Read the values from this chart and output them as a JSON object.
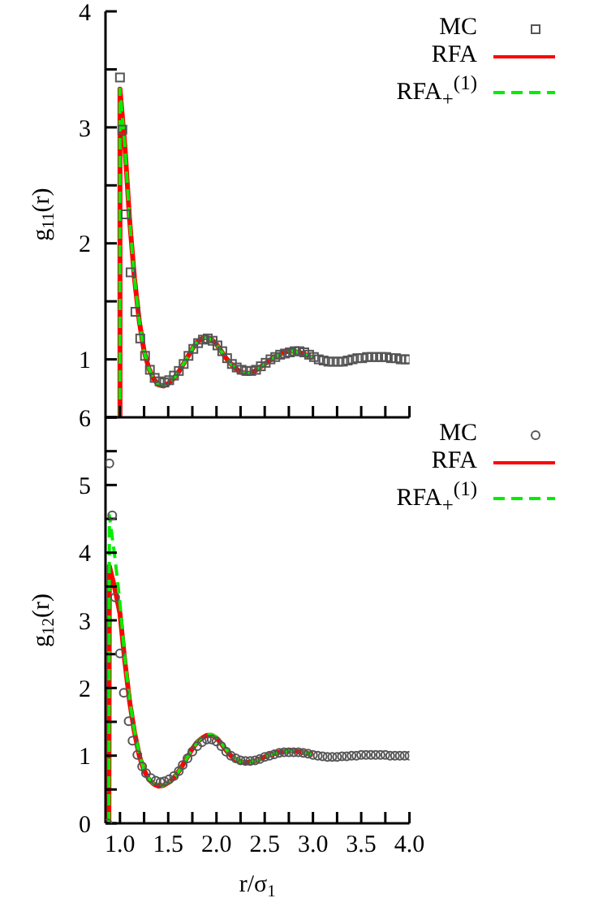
{
  "chart_data": [
    {
      "type": "line",
      "ylabel": "g$_{11}$(r)",
      "xlim": [
        0.85,
        4
      ],
      "ylim": [
        0.5,
        4
      ],
      "xticks": [
        {
          "value": 1,
          "label": null
        },
        {
          "value": 1.25,
          "label": null
        },
        {
          "value": 1.5,
          "label": null
        },
        {
          "value": 1.75,
          "label": null
        },
        {
          "value": 2,
          "label": null
        },
        {
          "value": 2.25,
          "label": null
        },
        {
          "value": 2.5,
          "label": null
        },
        {
          "value": 2.75,
          "label": null
        },
        {
          "value": 3,
          "label": null
        },
        {
          "value": 3.25,
          "label": null
        },
        {
          "value": 3.5,
          "label": null
        },
        {
          "value": 3.75,
          "label": null
        },
        {
          "value": 4,
          "label": null
        }
      ],
      "yticks": [
        {
          "value": 0.5,
          "label": null
        },
        1,
        {
          "value": 1.5,
          "label": null
        },
        2,
        {
          "value": 2.5,
          "label": null
        },
        3,
        {
          "value": 3.5,
          "label": null
        },
        4
      ],
      "tick_labels": "y",
      "legend": "top right",
      "grid": false,
      "series": [
        {
          "name": "MC",
          "type": "scatter",
          "marker": "square",
          "color": "#555555",
          "x": [
            1.0,
            1.025,
            1.06,
            1.11,
            1.16,
            1.21,
            1.26,
            1.31,
            1.36,
            1.41,
            1.46,
            1.51,
            1.56,
            1.61,
            1.66,
            1.71,
            1.76,
            1.81,
            1.86,
            1.91,
            1.96,
            2.01,
            2.06,
            2.11,
            2.16,
            2.21,
            2.26,
            2.31,
            2.36,
            2.41,
            2.46,
            2.51,
            2.56,
            2.61,
            2.66,
            2.71,
            2.76,
            2.81,
            2.86,
            2.91,
            2.96,
            3.01,
            3.06,
            3.11,
            3.16,
            3.21,
            3.26,
            3.31,
            3.36,
            3.41,
            3.46,
            3.51,
            3.56,
            3.61,
            3.66,
            3.71,
            3.76,
            3.81,
            3.86,
            3.91,
            3.96,
            4.0
          ],
          "values": [
            3.43,
            2.98,
            2.25,
            1.75,
            1.41,
            1.18,
            1.03,
            0.91,
            0.84,
            0.81,
            0.8,
            0.82,
            0.86,
            0.9,
            0.96,
            1.03,
            1.09,
            1.14,
            1.17,
            1.18,
            1.16,
            1.12,
            1.07,
            1.01,
            0.96,
            0.93,
            0.91,
            0.9,
            0.9,
            0.91,
            0.94,
            0.97,
            1.0,
            1.02,
            1.04,
            1.05,
            1.06,
            1.07,
            1.07,
            1.06,
            1.04,
            1.02,
            1.0,
            0.99,
            0.98,
            0.98,
            0.98,
            0.98,
            0.99,
            1.0,
            1.01,
            1.01,
            1.02,
            1.02,
            1.02,
            1.02,
            1.02,
            1.01,
            1.01,
            1.0,
            1.0,
            1.0
          ]
        },
        {
          "name": "RFA",
          "type": "line",
          "marker": "none",
          "line_style": "solid",
          "color": "#ff0000",
          "x": [
            1.0,
            1.0,
            1.05,
            1.1,
            1.15,
            1.2,
            1.25,
            1.3,
            1.35,
            1.4,
            1.45,
            1.5,
            1.55,
            1.6,
            1.65,
            1.7,
            1.75,
            1.8,
            1.85,
            1.9,
            1.95,
            2.0,
            2.05,
            2.1,
            2.15,
            2.2,
            2.25,
            2.3,
            2.35,
            2.4,
            2.45,
            2.5,
            2.55,
            2.6,
            2.65,
            2.7,
            2.75,
            2.8,
            2.85,
            2.9,
            2.95,
            3.0
          ],
          "values": [
            0.5,
            3.33,
            2.85,
            2.2,
            1.7,
            1.33,
            1.07,
            0.92,
            0.83,
            0.78,
            0.77,
            0.79,
            0.83,
            0.88,
            0.95,
            1.02,
            1.09,
            1.15,
            1.18,
            1.19,
            1.17,
            1.13,
            1.07,
            1.01,
            0.96,
            0.92,
            0.89,
            0.88,
            0.88,
            0.9,
            0.93,
            0.96,
            0.99,
            1.02,
            1.04,
            1.06,
            1.07,
            1.07,
            1.06,
            1.05,
            1.03,
            1.01
          ]
        },
        {
          "name": "RFA$_{+}$$^{(1)}$",
          "type": "line",
          "marker": "none",
          "line_style": "dashed",
          "color": "#00ee00",
          "x": [
            1.0,
            1.0,
            1.05,
            1.1,
            1.15,
            1.2,
            1.25,
            1.3,
            1.35,
            1.4,
            1.45,
            1.5,
            1.55,
            1.6,
            1.65,
            1.7,
            1.75,
            1.8,
            1.85,
            1.9,
            1.95,
            2.0,
            2.05,
            2.1,
            2.15,
            2.2,
            2.25,
            2.3,
            2.35,
            2.4,
            2.45,
            2.5,
            2.55,
            2.6,
            2.65,
            2.7,
            2.75,
            2.8,
            2.85,
            2.9,
            2.95,
            3.0
          ],
          "values": [
            0.5,
            3.33,
            2.85,
            2.2,
            1.7,
            1.33,
            1.07,
            0.92,
            0.83,
            0.78,
            0.77,
            0.79,
            0.83,
            0.88,
            0.95,
            1.02,
            1.09,
            1.15,
            1.18,
            1.19,
            1.17,
            1.13,
            1.07,
            1.01,
            0.96,
            0.92,
            0.89,
            0.88,
            0.88,
            0.9,
            0.93,
            0.96,
            0.99,
            1.02,
            1.04,
            1.06,
            1.07,
            1.07,
            1.06,
            1.05,
            1.03,
            1.01
          ]
        }
      ]
    },
    {
      "type": "line",
      "xlabel": "r/σ$_{1}$",
      "ylabel": "g$_{12}$(r)",
      "xlim": [
        0.85,
        4
      ],
      "ylim": [
        0,
        6
      ],
      "xticks": [
        {
          "value": 1,
          "label": "1.0"
        },
        {
          "value": 1.25,
          "label": null
        },
        {
          "value": 1.5,
          "label": "1.5"
        },
        {
          "value": 1.75,
          "label": null
        },
        {
          "value": 2,
          "label": "2.0"
        },
        {
          "value": 2.25,
          "label": null
        },
        {
          "value": 2.5,
          "label": "2.5"
        },
        {
          "value": 2.75,
          "label": null
        },
        {
          "value": 3,
          "label": "3.0"
        },
        {
          "value": 3.25,
          "label": null
        },
        {
          "value": 3.5,
          "label": "3.5"
        },
        {
          "value": 3.75,
          "label": null
        },
        {
          "value": 4,
          "label": "4.0"
        }
      ],
      "yticks": [
        0,
        {
          "value": 0.5,
          "label": null
        },
        1,
        {
          "value": 1.5,
          "label": null
        },
        2,
        {
          "value": 2.5,
          "label": null
        },
        3,
        {
          "value": 3.5,
          "label": null
        },
        4,
        {
          "value": 4.5,
          "label": null
        },
        5,
        {
          "value": 5.5,
          "label": null
        },
        6
      ],
      "legend": "top right",
      "grid": false,
      "series": [
        {
          "name": "MC",
          "type": "scatter",
          "marker": "circle",
          "color": "#555555",
          "x": [
            0.87,
            0.89,
            0.92,
            0.95,
            1.0,
            1.04,
            1.09,
            1.13,
            1.18,
            1.23,
            1.27,
            1.32,
            1.37,
            1.42,
            1.46,
            1.51,
            1.56,
            1.61,
            1.65,
            1.7,
            1.75,
            1.8,
            1.85,
            1.9,
            1.95,
            2.0,
            2.05,
            2.1,
            2.15,
            2.2,
            2.25,
            2.3,
            2.35,
            2.4,
            2.45,
            2.5,
            2.55,
            2.6,
            2.65,
            2.7,
            2.75,
            2.8,
            2.85,
            2.9,
            2.95,
            3.0,
            3.05,
            3.1,
            3.15,
            3.2,
            3.25,
            3.3,
            3.35,
            3.4,
            3.45,
            3.5,
            3.55,
            3.6,
            3.65,
            3.7,
            3.75,
            3.8,
            3.85,
            3.9,
            3.95,
            4.0
          ],
          "values": [
            0,
            5.32,
            4.55,
            3.34,
            2.51,
            1.93,
            1.51,
            1.22,
            1.01,
            0.84,
            0.74,
            0.67,
            0.63,
            0.61,
            0.62,
            0.65,
            0.7,
            0.77,
            0.86,
            0.96,
            1.06,
            1.14,
            1.2,
            1.24,
            1.24,
            1.21,
            1.14,
            1.06,
            1.0,
            0.96,
            0.93,
            0.92,
            0.92,
            0.93,
            0.95,
            0.98,
            1.0,
            1.02,
            1.04,
            1.05,
            1.05,
            1.05,
            1.05,
            1.04,
            1.03,
            1.01,
            1.0,
            0.99,
            0.98,
            0.98,
            0.98,
            0.99,
            0.99,
            1.0,
            1.0,
            1.01,
            1.01,
            1.01,
            1.01,
            1.01,
            1.01,
            1.0,
            1.0,
            1.0,
            1.0,
            1.0
          ]
        },
        {
          "name": "RFA",
          "type": "line",
          "marker": "none",
          "line_style": "solid",
          "color": "#ff0000",
          "x": [
            0.885,
            0.89,
            0.95,
            1.0,
            1.05,
            1.1,
            1.15,
            1.2,
            1.25,
            1.3,
            1.35,
            1.4,
            1.45,
            1.5,
            1.55,
            1.6,
            1.65,
            1.7,
            1.75,
            1.8,
            1.85,
            1.9,
            1.95,
            2.0,
            2.05,
            2.1,
            2.15,
            2.2,
            2.25,
            2.3,
            2.35,
            2.4,
            2.45,
            2.5,
            2.55,
            2.6,
            2.65,
            2.7,
            2.75,
            2.8,
            2.85,
            2.9,
            2.95,
            3.0
          ],
          "values": [
            0,
            3.8,
            3.45,
            3.1,
            2.4,
            1.8,
            1.35,
            1.0,
            0.78,
            0.65,
            0.58,
            0.55,
            0.56,
            0.6,
            0.66,
            0.75,
            0.86,
            0.98,
            1.1,
            1.2,
            1.26,
            1.3,
            1.3,
            1.26,
            1.18,
            1.08,
            1.0,
            0.94,
            0.91,
            0.9,
            0.9,
            0.92,
            0.95,
            0.98,
            1.01,
            1.03,
            1.05,
            1.06,
            1.07,
            1.07,
            1.06,
            1.05,
            1.03,
            1.02
          ]
        },
        {
          "name": "RFA$_{+}$$^{(1)}$",
          "type": "line",
          "marker": "none",
          "line_style": "dashed",
          "color": "#00ee00",
          "x": [
            0.885,
            0.89,
            0.95,
            1.0,
            1.05,
            1.1,
            1.15,
            1.2,
            1.25,
            1.3,
            1.35,
            1.4,
            1.45,
            1.5,
            1.55,
            1.6,
            1.65,
            1.7,
            1.75,
            1.8,
            1.85,
            1.9,
            1.95,
            2.0,
            2.05,
            2.1,
            2.15,
            2.2,
            2.25,
            2.3,
            2.35,
            2.4,
            2.45,
            2.5,
            2.55,
            2.6,
            2.65,
            2.7,
            2.75,
            2.8,
            2.85,
            2.9,
            2.95,
            3.0
          ],
          "values": [
            0,
            4.55,
            3.9,
            3.25,
            2.45,
            1.82,
            1.37,
            1.02,
            0.79,
            0.66,
            0.58,
            0.55,
            0.56,
            0.6,
            0.66,
            0.75,
            0.86,
            0.98,
            1.1,
            1.2,
            1.27,
            1.31,
            1.31,
            1.27,
            1.19,
            1.09,
            1.01,
            0.95,
            0.91,
            0.9,
            0.9,
            0.92,
            0.95,
            0.98,
            1.01,
            1.03,
            1.05,
            1.06,
            1.07,
            1.07,
            1.06,
            1.05,
            1.03,
            1.02
          ]
        }
      ]
    }
  ]
}
